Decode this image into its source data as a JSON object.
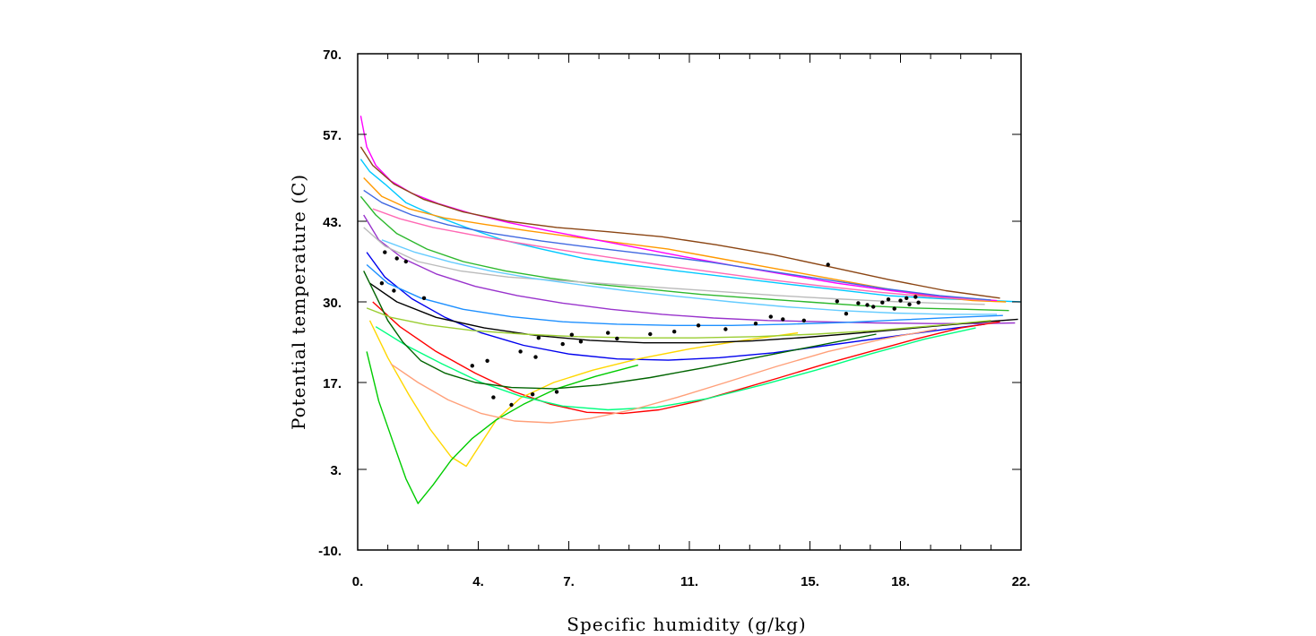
{
  "chart_data": {
    "type": "line",
    "title": "",
    "xlabel": "Specific humidity (g/kg)",
    "ylabel": "Potential temperature (C)",
    "xlim": [
      0,
      22
    ],
    "ylim": [
      -10,
      70
    ],
    "x_ticks": [
      {
        "value": 0,
        "label": "0."
      },
      {
        "value": 4,
        "label": "4."
      },
      {
        "value": 7,
        "label": "7."
      },
      {
        "value": 11,
        "label": "11."
      },
      {
        "value": 15,
        "label": "15."
      },
      {
        "value": 18,
        "label": "18."
      },
      {
        "value": 22,
        "label": "22."
      }
    ],
    "y_ticks": [
      {
        "value": -10,
        "label": "-10."
      },
      {
        "value": 3,
        "label": "3."
      },
      {
        "value": 17,
        "label": "17."
      },
      {
        "value": 30,
        "label": "30."
      },
      {
        "value": 43,
        "label": "43."
      },
      {
        "value": 57,
        "label": "57."
      },
      {
        "value": 70,
        "label": "70."
      }
    ],
    "grid": false,
    "legend": "none",
    "series_colors": [
      "#00c8ff",
      "#ff9900",
      "#2db82d",
      "#9933cc",
      "#0000ee",
      "#ff0000",
      "#ffd700",
      "#00cc00",
      "#ff00ff",
      "#bbbbbb",
      "#000000",
      "#00ff7f",
      "#8b4513",
      "#1e90ff",
      "#006400",
      "#ff69b4",
      "#66ccff",
      "#ffa07a",
      "#4169e1",
      "#9acd32"
    ],
    "series": [
      {
        "x": [
          0.1,
          0.4,
          0.9,
          1.6,
          2.5,
          3.6,
          4.8,
          6.1,
          7.5,
          9.0,
          10.6,
          12.3,
          14.0,
          15.8,
          17.6,
          19.4,
          21.0,
          22.0
        ],
        "y": [
          53,
          51,
          49,
          46,
          44,
          42,
          40,
          38.5,
          37,
          36,
          35,
          34,
          33,
          32,
          31,
          30.5,
          30.2,
          30
        ]
      },
      {
        "x": [
          0.2,
          0.8,
          1.7,
          2.9,
          4.2,
          5.6,
          7.1,
          8.7,
          10.3,
          12.0,
          13.7,
          15.4,
          17.1,
          18.8,
          20.4,
          21.5
        ],
        "y": [
          50,
          47,
          45,
          43.5,
          42.5,
          41.5,
          40.5,
          39.5,
          38.5,
          37,
          35.5,
          34,
          32.5,
          31,
          30.2,
          30
        ]
      },
      {
        "x": [
          0.1,
          0.6,
          1.3,
          2.3,
          3.5,
          4.9,
          6.4,
          8.0,
          9.7,
          11.4,
          13.1,
          14.9,
          16.7,
          18.5,
          20.2,
          21.6
        ],
        "y": [
          47,
          44,
          41,
          38.5,
          36.5,
          35,
          33.8,
          32.8,
          32,
          31.2,
          30.6,
          30,
          29.4,
          29,
          28.8,
          28.6
        ]
      },
      {
        "x": [
          0.2,
          0.7,
          1.5,
          2.6,
          3.9,
          5.3,
          6.8,
          8.4,
          10.1,
          11.8,
          13.6,
          15.4,
          17.2,
          19.0,
          20.7,
          21.8
        ],
        "y": [
          44,
          40,
          37,
          34.5,
          32.5,
          31,
          29.8,
          28.8,
          28,
          27.4,
          27,
          26.8,
          26.6,
          26.5,
          26.5,
          26.6
        ]
      },
      {
        "x": [
          0.3,
          0.9,
          1.8,
          2.9,
          4.1,
          5.5,
          7.0,
          8.6,
          10.3,
          12.0,
          13.8,
          15.6,
          17.4,
          19.2,
          20.8
        ],
        "y": [
          38,
          34,
          30.5,
          27.5,
          25,
          23,
          21.6,
          20.8,
          20.6,
          21,
          21.8,
          23,
          24.2,
          25.4,
          26.4
        ]
      },
      {
        "x": [
          0.5,
          1.4,
          2.6,
          3.9,
          5.2,
          6.4,
          7.6,
          8.8,
          10.0,
          11.3,
          12.6,
          14.0,
          15.5,
          17.0,
          18.5,
          20.0,
          21.3
        ],
        "y": [
          30,
          26,
          22,
          18.5,
          15.5,
          13.5,
          12.2,
          12,
          12.6,
          14,
          15.8,
          17.8,
          20,
          22,
          24,
          25.8,
          26.8
        ]
      },
      {
        "x": [
          0.4,
          1.0,
          1.7,
          2.4,
          3.1,
          3.6,
          4.0,
          4.6,
          5.4,
          6.5,
          7.8,
          9.3,
          11.0,
          12.8,
          14.6
        ],
        "y": [
          27,
          21,
          15,
          9.5,
          5,
          3.5,
          6.5,
          11,
          14.5,
          17,
          19,
          20.8,
          22.4,
          23.8,
          25
        ]
      },
      {
        "x": [
          0.3,
          0.7,
          1.2,
          1.6,
          2.0,
          2.5,
          3.1,
          3.8,
          4.6,
          5.5,
          6.6,
          7.9,
          9.3
        ],
        "y": [
          22,
          14,
          7,
          1.5,
          -2.5,
          0.5,
          4.5,
          8,
          11,
          13.5,
          16,
          18,
          19.8
        ]
      },
      {
        "x": [
          0.1,
          0.3,
          0.6,
          1.1,
          1.8,
          2.7,
          3.8,
          5.0,
          6.3,
          7.7,
          9.2,
          10.8,
          12.5,
          14.2,
          15.9,
          17.7,
          19.5,
          21.2
        ],
        "y": [
          60,
          55,
          52,
          49.5,
          47.5,
          45.8,
          44.2,
          42.8,
          41.5,
          40.2,
          38.8,
          37.3,
          35.8,
          34.4,
          33,
          31.8,
          30.8,
          30.2
        ]
      },
      {
        "x": [
          0.2,
          0.9,
          2.0,
          3.4,
          5.0,
          6.8,
          8.6,
          10.4,
          12.2,
          14.0,
          15.8,
          17.5,
          19.2,
          20.8
        ],
        "y": [
          42,
          39,
          36.5,
          35,
          34,
          33.4,
          32.8,
          32.2,
          31.6,
          31,
          30.5,
          30.1,
          29.8,
          29.6
        ]
      },
      {
        "x": [
          0.4,
          1.3,
          2.6,
          4.2,
          5.9,
          7.7,
          9.5,
          11.3,
          13.1,
          14.9,
          16.7,
          18.5,
          20.3,
          21.9
        ],
        "y": [
          33,
          30,
          27.5,
          25.8,
          24.6,
          23.8,
          23.4,
          23.4,
          23.7,
          24.3,
          25,
          25.8,
          26.6,
          27.2
        ]
      },
      {
        "x": [
          0.6,
          1.6,
          2.8,
          4.1,
          5.4,
          6.8,
          8.3,
          9.9,
          11.6,
          13.4,
          15.2,
          17.0,
          18.8,
          20.5
        ],
        "y": [
          26,
          23,
          20,
          17,
          14.8,
          13.2,
          12.6,
          13,
          14.4,
          16.6,
          19,
          21.6,
          24,
          25.8
        ]
      },
      {
        "x": [
          0.1,
          0.5,
          1.2,
          2.2,
          3.5,
          5.0,
          6.6,
          8.3,
          10.1,
          11.9,
          13.8,
          15.7,
          17.6,
          19.5,
          21.3
        ],
        "y": [
          55,
          52,
          49,
          46.5,
          44.5,
          43,
          42,
          41.3,
          40.5,
          39.2,
          37.6,
          35.6,
          33.6,
          31.8,
          30.6
        ]
      },
      {
        "x": [
          0.3,
          1.0,
          2.1,
          3.5,
          5.1,
          6.8,
          8.6,
          10.5,
          12.4,
          14.3,
          16.2,
          18.0,
          19.8,
          21.4
        ],
        "y": [
          36,
          33,
          30.6,
          28.8,
          27.6,
          26.8,
          26.4,
          26.2,
          26.2,
          26.4,
          26.7,
          27.1,
          27.5,
          27.8
        ]
      },
      {
        "x": [
          0.2,
          0.6,
          1.0,
          1.5,
          2.1,
          2.9,
          3.9,
          5.1,
          6.5,
          8.0,
          9.7,
          11.5,
          13.4,
          15.3,
          17.2
        ],
        "y": [
          35,
          31,
          27,
          23.5,
          20.5,
          18.5,
          17,
          16.2,
          16,
          16.6,
          17.8,
          19.4,
          21.2,
          23,
          24.8
        ]
      },
      {
        "x": [
          0.5,
          1.4,
          2.5,
          3.8,
          5.2,
          6.7,
          8.3,
          10.0,
          11.8,
          13.6,
          15.5,
          17.4,
          19.3,
          21.0
        ],
        "y": [
          45,
          43.4,
          42,
          40.8,
          39.6,
          38.4,
          37.2,
          36,
          34.8,
          33.6,
          32.5,
          31.5,
          30.7,
          30.2
        ]
      },
      {
        "x": [
          0.8,
          1.9,
          3.1,
          4.4,
          5.8,
          7.3,
          8.9,
          10.6,
          12.4,
          14.2,
          16.0,
          17.8,
          19.6,
          21.2
        ],
        "y": [
          40,
          38,
          36.4,
          35,
          33.8,
          32.8,
          31.8,
          30.9,
          30,
          29.2,
          28.6,
          28.2,
          28,
          28
        ]
      },
      {
        "x": [
          1.1,
          2.0,
          3.0,
          4.1,
          5.2,
          6.4,
          7.7,
          9.1,
          10.6,
          12.2,
          13.9,
          15.6,
          17.4,
          19.2
        ],
        "y": [
          20,
          17,
          14.2,
          12,
          10.8,
          10.5,
          11.2,
          12.6,
          14.6,
          17,
          19.6,
          22,
          24,
          25.6
        ]
      },
      {
        "x": [
          0.2,
          0.8,
          1.8,
          3.0,
          4.5,
          6.1,
          7.9,
          9.8,
          11.7,
          13.6,
          15.5,
          17.4,
          19.3,
          21.0
        ],
        "y": [
          48,
          46,
          44,
          42.4,
          41,
          39.8,
          38.7,
          37.6,
          36.4,
          35,
          33.6,
          32.2,
          31,
          30.3
        ]
      },
      {
        "x": [
          0.3,
          1.1,
          2.3,
          3.8,
          5.5,
          7.3,
          9.2,
          11.2,
          13.2,
          15.2,
          17.2,
          19.2,
          21.0
        ],
        "y": [
          29,
          27.5,
          26.3,
          25.4,
          24.8,
          24.4,
          24.2,
          24.2,
          24.4,
          24.8,
          25.4,
          26.2,
          27
        ]
      }
    ],
    "markers": {
      "color": "#000000",
      "points": [
        [
          0.9,
          38
        ],
        [
          1.3,
          37
        ],
        [
          1.6,
          36.5
        ],
        [
          0.8,
          33
        ],
        [
          1.2,
          31.8
        ],
        [
          2.2,
          30.6
        ],
        [
          5.4,
          22
        ],
        [
          6.8,
          23.2
        ],
        [
          7.4,
          23.6
        ],
        [
          8.6,
          24.1
        ],
        [
          9.7,
          24.8
        ],
        [
          10.5,
          25.2
        ],
        [
          12.2,
          25.6
        ],
        [
          13.2,
          26.5
        ],
        [
          14.1,
          27.2
        ],
        [
          14.8,
          27
        ],
        [
          15.6,
          36
        ],
        [
          15.9,
          30.1
        ],
        [
          16.6,
          29.8
        ],
        [
          17.1,
          29.2
        ],
        [
          17.6,
          30.4
        ],
        [
          18.0,
          30.2
        ],
        [
          18.3,
          29.6
        ],
        [
          18.6,
          29.9
        ],
        [
          4.5,
          14.6
        ],
        [
          5.1,
          13.4
        ],
        [
          5.8,
          15.1
        ],
        [
          6.6,
          15.5
        ],
        [
          4.3,
          20.5
        ],
        [
          5.9,
          21.1
        ],
        [
          17.4,
          29.9
        ],
        [
          18.2,
          30.6
        ],
        [
          16.2,
          28.1
        ],
        [
          8.3,
          25
        ],
        [
          11.3,
          26.2
        ],
        [
          3.8,
          19.7
        ],
        [
          6.0,
          24.2
        ],
        [
          7.1,
          24.7
        ],
        [
          13.7,
          27.6
        ],
        [
          16.9,
          29.5
        ],
        [
          17.8,
          28.9
        ],
        [
          18.5,
          30.8
        ]
      ]
    }
  }
}
